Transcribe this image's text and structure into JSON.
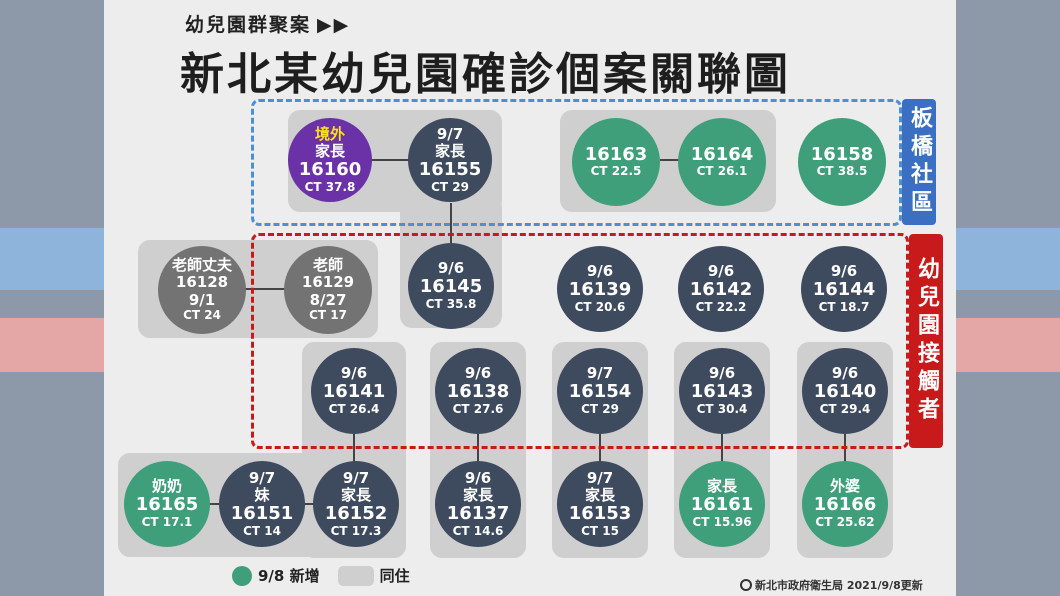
{
  "header": {
    "kicker": "幼兒園群聚案",
    "kicker_arrows": "▶▶",
    "title": "新北某幼兒園確診個案關聯圖"
  },
  "zones": {
    "blue_label": "板橋社區",
    "red_label": "幼兒園接觸者",
    "blue_color": "#3a6fc2",
    "red_color": "#c81a1a"
  },
  "nodes": {
    "n16160": {
      "tag": "境外",
      "l1": "家長",
      "l2": "16160",
      "l3": "CT 37.8",
      "color": "#6b31a6"
    },
    "n16155": {
      "l1": "9/7",
      "l2": "家長",
      "l3": "16155",
      "l4": "CT 29",
      "color": "#3e4a5e"
    },
    "n16163": {
      "l1": "16163",
      "l2": "CT 22.5",
      "color": "#3f9f7b"
    },
    "n16164": {
      "l1": "16164",
      "l2": "CT 26.1",
      "color": "#3f9f7b"
    },
    "n16158": {
      "l1": "16158",
      "l2": "CT 38.5",
      "color": "#3f9f7b"
    },
    "n16128": {
      "l1": "老師丈夫",
      "l2": "16128",
      "l3": "9/1",
      "l4": "CT 24",
      "color": "#737373"
    },
    "n16129": {
      "l1": "老師",
      "l2": "16129",
      "l3": "8/27",
      "l4": "CT 17",
      "color": "#737373"
    },
    "n16145": {
      "l1": "9/6",
      "l2": "16145",
      "l3": "CT 35.8",
      "color": "#3e4a5e"
    },
    "n16139": {
      "l1": "9/6",
      "l2": "16139",
      "l3": "CT 20.6",
      "color": "#3e4a5e"
    },
    "n16142": {
      "l1": "9/6",
      "l2": "16142",
      "l3": "CT 22.2",
      "color": "#3e4a5e"
    },
    "n16144": {
      "l1": "9/6",
      "l2": "16144",
      "l3": "CT 18.7",
      "color": "#3e4a5e"
    },
    "n16141": {
      "l1": "9/6",
      "l2": "16141",
      "l3": "CT 26.4",
      "color": "#3e4a5e"
    },
    "n16138": {
      "l1": "9/6",
      "l2": "16138",
      "l3": "CT 27.6",
      "color": "#3e4a5e"
    },
    "n16154": {
      "l1": "9/7",
      "l2": "16154",
      "l3": "CT 29",
      "color": "#3e4a5e"
    },
    "n16143": {
      "l1": "9/6",
      "l2": "16143",
      "l3": "CT 30.4",
      "color": "#3e4a5e"
    },
    "n16140": {
      "l1": "9/6",
      "l2": "16140",
      "l3": "CT 29.4",
      "color": "#3e4a5e"
    },
    "n16165": {
      "l1": "奶奶",
      "l2": "16165",
      "l3": "CT 17.1",
      "color": "#3f9f7b"
    },
    "n16151": {
      "l1": "9/7",
      "l2": "妹",
      "l3": "16151",
      "l4": "CT 14",
      "color": "#3e4a5e"
    },
    "n16152": {
      "l1": "9/7",
      "l2": "家長",
      "l3": "16152",
      "l4": "CT 17.3",
      "color": "#3e4a5e"
    },
    "n16137": {
      "l1": "9/6",
      "l2": "家長",
      "l3": "16137",
      "l4": "CT 14.6",
      "color": "#3e4a5e"
    },
    "n16153": {
      "l1": "9/7",
      "l2": "家長",
      "l3": "16153",
      "l4": "CT 15",
      "color": "#3e4a5e"
    },
    "n16161": {
      "l1": "家長",
      "l2": "16161",
      "l3": "CT 15.96",
      "color": "#3f9f7b"
    },
    "n16166": {
      "l1": "外婆",
      "l2": "16166",
      "l3": "CT 25.62",
      "color": "#3f9f7b"
    }
  },
  "legend": {
    "new_label": "9/8 新增",
    "cohabit_label": "同住"
  },
  "source": "新北市政府衛生局 2021/9/8更新"
}
